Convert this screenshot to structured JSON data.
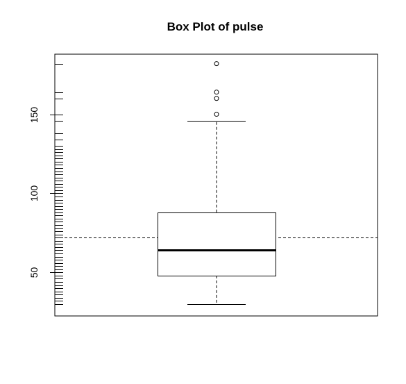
{
  "chart_data": {
    "type": "box",
    "title": "Box Plot of pulse",
    "xlabel": "",
    "ylabel": "",
    "ylim": [
      22.5,
      188
    ],
    "y_ticks": [
      50,
      100,
      150
    ],
    "y_tick_labels": [
      "50",
      "100",
      "150"
    ],
    "box": {
      "whisker_low": 30,
      "q1": 48,
      "median": 64,
      "q3": 88,
      "whisker_high": 146
    },
    "outliers": [
      150,
      160,
      164,
      182
    ],
    "reference_line": {
      "value": 72,
      "style": "dashed"
    },
    "rug": [
      30,
      32,
      34,
      36,
      38,
      40,
      42,
      44,
      46,
      48,
      50,
      52,
      54,
      56,
      58,
      60,
      62,
      64,
      66,
      68,
      70,
      72,
      74,
      76,
      78,
      80,
      82,
      84,
      86,
      88,
      90,
      92,
      94,
      96,
      98,
      100,
      102,
      104,
      106,
      108,
      110,
      112,
      114,
      116,
      118,
      120,
      122,
      124,
      126,
      128,
      130,
      134,
      138,
      146,
      150,
      160,
      164,
      182
    ],
    "grid": false,
    "legend": "none"
  },
  "colors": {
    "ink": "#000000",
    "background": "#ffffff"
  }
}
